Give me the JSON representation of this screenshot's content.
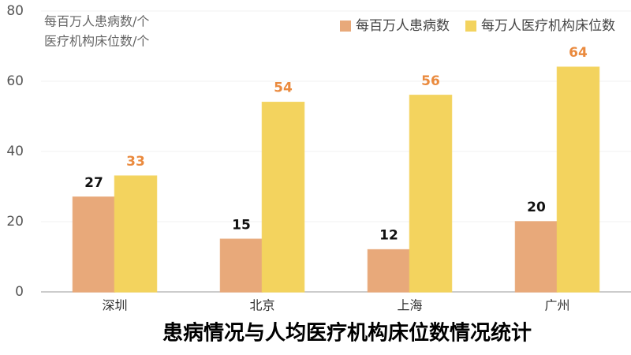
{
  "chart_data": {
    "type": "bar",
    "title": "患病情况与人均医疗机构床位数情况统计",
    "ylabel": [
      "每百万人患病数/个",
      "医疗机构床位数/个"
    ],
    "categories": [
      "深圳",
      "北京",
      "上海",
      "广州"
    ],
    "series": [
      {
        "name": "每百万人患病数",
        "color": "#e8a97a",
        "label_color": "#111111",
        "values": [
          27,
          15,
          12,
          20
        ]
      },
      {
        "name": "每万人医疗机构床位数",
        "color": "#f3d35e",
        "label_color": "#ea8a3e",
        "values": [
          33,
          54,
          56,
          64
        ]
      }
    ],
    "ylim": [
      0,
      80
    ],
    "yticks": [
      0,
      20,
      40,
      60,
      80
    ],
    "grid": true,
    "legend": "top-right"
  }
}
